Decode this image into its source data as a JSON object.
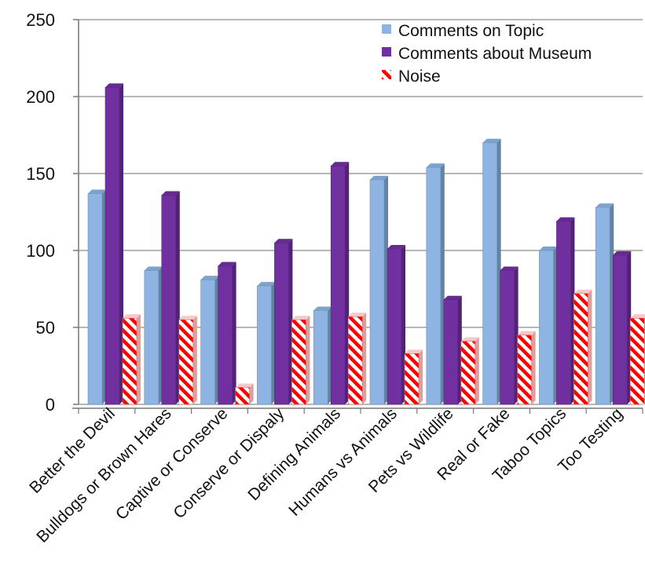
{
  "chart_data": {
    "type": "bar",
    "categories": [
      "Better the Devil",
      "Bulldogs or Brown Hares",
      "Captive or Conserve",
      "Conserve or Dispaly",
      "Defining Animals",
      "Humans vs Animals",
      "Pets vs Wildlife",
      "Real or Fake",
      "Taboo Topics",
      "Too Testing"
    ],
    "series": [
      {
        "name": "Comments on Topic",
        "color": "#8DB4E2",
        "values": [
          137,
          87,
          81,
          77,
          61,
          146,
          154,
          170,
          100,
          128
        ]
      },
      {
        "name": "Comments about Museum",
        "color": "#7030A0",
        "values": [
          206,
          136,
          90,
          105,
          155,
          101,
          68,
          87,
          119,
          97
        ]
      },
      {
        "name": "Noise",
        "color": "#FF0000",
        "pattern": "diagonal-stripes",
        "values": [
          56,
          55,
          11,
          55,
          57,
          33,
          41,
          45,
          72,
          56
        ]
      }
    ],
    "yticks": [
      0,
      50,
      100,
      150,
      200,
      250
    ],
    "ylim": [
      0,
      250
    ],
    "grid": true,
    "legend_position": "top-right",
    "style": "3d-bar"
  }
}
